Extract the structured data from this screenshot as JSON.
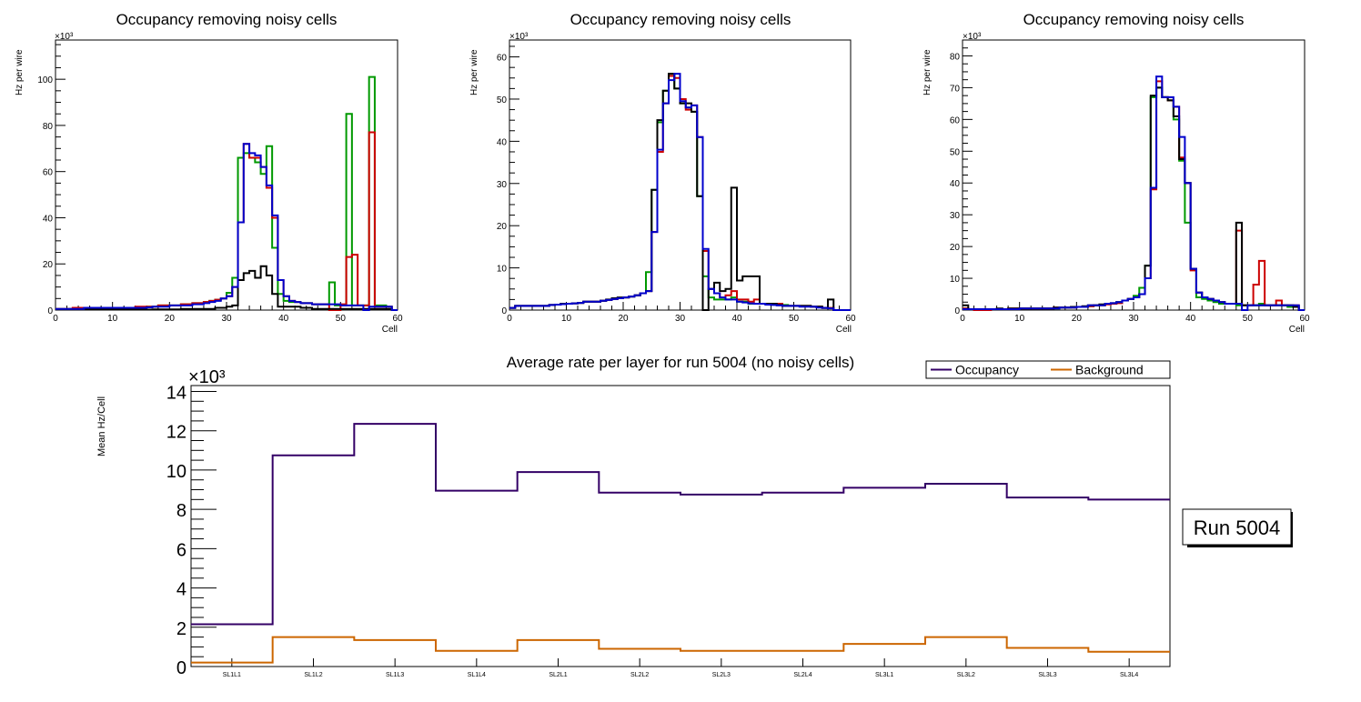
{
  "chart_data": [
    {
      "type": "histogram",
      "title": "Occupancy removing noisy cells",
      "xlabel": "Cell",
      "ylabel": "Hz per wire",
      "y_multiplier": "×10³",
      "xlim": [
        0,
        60
      ],
      "ylim": [
        0,
        117
      ],
      "xticks": [
        0,
        10,
        20,
        30,
        40,
        50,
        60
      ],
      "yticks": [
        0,
        20,
        40,
        60,
        80,
        100
      ],
      "series": [
        {
          "name": "green",
          "color": "#009900",
          "values": [
            0.5,
            0.5,
            0.5,
            0.5,
            0.5,
            0.5,
            1,
            1,
            1,
            1,
            1,
            1,
            1,
            1,
            1.2,
            1.2,
            1.5,
            1.5,
            2,
            2,
            2,
            2,
            2.5,
            2.5,
            3,
            3,
            3.5,
            4,
            4.5,
            5,
            7.5,
            14,
            66,
            68,
            66,
            64,
            59,
            71,
            27,
            7,
            4,
            3.5,
            3.5,
            3,
            3,
            2.5,
            2.5,
            2.5,
            12,
            2,
            2,
            85,
            2,
            2,
            2,
            101,
            2,
            2,
            1.5,
            0
          ]
        },
        {
          "name": "red",
          "color": "#cc0000",
          "values": [
            0.5,
            0.5,
            0.5,
            1,
            1,
            0.5,
            0.5,
            1,
            1,
            1,
            1,
            1,
            1,
            1,
            1.5,
            1.5,
            1.5,
            1.5,
            2,
            2,
            2,
            2,
            2.5,
            2.5,
            3,
            3,
            3.5,
            4,
            4.5,
            5,
            6,
            10,
            38,
            72,
            66,
            66,
            62,
            53,
            40,
            13,
            6,
            4,
            3.5,
            3,
            3,
            2.5,
            2.5,
            2.5,
            0,
            0,
            2.5,
            23,
            24,
            2,
            2,
            77,
            1.5,
            1.5,
            1.5,
            0
          ]
        },
        {
          "name": "black",
          "color": "#000000",
          "values": [
            0.2,
            0.2,
            0.2,
            0.2,
            0.2,
            0.2,
            0.2,
            0.2,
            0.2,
            0.2,
            0.2,
            0.2,
            0.2,
            0.2,
            0.2,
            0.2,
            0.2,
            0.3,
            0.3,
            0.3,
            0.3,
            0.3,
            0.5,
            0.5,
            0.5,
            0.5,
            0.5,
            0.5,
            1,
            1,
            1.5,
            2,
            13,
            16,
            17,
            14,
            19,
            15,
            7,
            1.5,
            1.5,
            1.5,
            1.5,
            1,
            1,
            0.5,
            0.5,
            0.5,
            0.5,
            0.5,
            0.5,
            0.5,
            0.5,
            0.5,
            0.5,
            0.5,
            0.5,
            0.5,
            0.5,
            0
          ]
        },
        {
          "name": "blue",
          "color": "#0000cc",
          "values": [
            0.5,
            0.5,
            0.5,
            0.5,
            0.5,
            1,
            1,
            1,
            1,
            1,
            1,
            1,
            1,
            1,
            1,
            1,
            1.2,
            1.5,
            1.5,
            1.5,
            2,
            2,
            2,
            2,
            2.5,
            2.5,
            3,
            3.5,
            4,
            5,
            6,
            10,
            38,
            72,
            68,
            67,
            62,
            54,
            41,
            13,
            6,
            4,
            3.5,
            3,
            3,
            2.5,
            2.5,
            2.5,
            2.5,
            2.5,
            2,
            2,
            2,
            2,
            0,
            1.5,
            1.5,
            1.5,
            1.5,
            0
          ]
        }
      ]
    },
    {
      "type": "histogram",
      "title": "Occupancy removing noisy cells",
      "xlabel": "Cell",
      "ylabel": "Hz per wire",
      "y_multiplier": "×10³",
      "xlim": [
        0,
        60
      ],
      "ylim": [
        0,
        64
      ],
      "xticks": [
        0,
        10,
        20,
        30,
        40,
        50,
        60
      ],
      "yticks": [
        0,
        10,
        20,
        30,
        40,
        50,
        60
      ],
      "series": [
        {
          "name": "green",
          "color": "#009900",
          "values": [
            0.5,
            1,
            1,
            1,
            1,
            1,
            1,
            1.2,
            1.3,
            1.4,
            1.5,
            1.6,
            1.7,
            2,
            2,
            2,
            2.2,
            2.4,
            2.6,
            2.8,
            3,
            3.2,
            3.5,
            4,
            9,
            28.5,
            44.5,
            52,
            56,
            52.5,
            49,
            48,
            47,
            27,
            8,
            3,
            2.5,
            2.5,
            2.5,
            3,
            2,
            2,
            1.5,
            1.5,
            1.5,
            1.5,
            1.5,
            1.2,
            1.2,
            1,
            1,
            1,
            1,
            0.8,
            0.8,
            0.5,
            0.5,
            0,
            0,
            0
          ]
        },
        {
          "name": "red",
          "color": "#cc0000",
          "values": [
            0.5,
            1,
            1,
            1,
            1,
            1,
            1,
            1.2,
            1.3,
            1.4,
            1.5,
            1.6,
            1.7,
            2,
            2,
            2,
            2.2,
            2.4,
            2.6,
            2.8,
            3,
            3.2,
            3.5,
            4,
            4.5,
            18.5,
            37.5,
            49,
            55.5,
            55,
            50,
            47.5,
            48.5,
            41,
            14,
            5,
            4,
            3,
            3.5,
            4.5,
            2.5,
            2.5,
            2,
            2.5,
            1.5,
            1.5,
            1.5,
            1.5,
            1,
            1,
            1,
            1,
            1,
            0.8,
            0.8,
            0.5,
            0.5,
            0,
            0,
            0
          ]
        },
        {
          "name": "black",
          "color": "#000000",
          "values": [
            0.5,
            1,
            1,
            1,
            1,
            1,
            1,
            1.2,
            1.3,
            1.5,
            1.5,
            1.6,
            1.7,
            2,
            2,
            2,
            2.2,
            2.5,
            2.8,
            3,
            3,
            3.2,
            3.5,
            4,
            4.5,
            28.5,
            45,
            52,
            56,
            52.5,
            49,
            49,
            47,
            27,
            0,
            5,
            6.5,
            4.5,
            5,
            29,
            7,
            8,
            8,
            8,
            1.5,
            1.5,
            1.5,
            1.2,
            1,
            1,
            1,
            1,
            1,
            0.8,
            0.8,
            0.5,
            2.5,
            0,
            0,
            0
          ]
        },
        {
          "name": "blue",
          "color": "#0000cc",
          "values": [
            0.5,
            1,
            1,
            1,
            1,
            1,
            1,
            1.2,
            1.3,
            1.4,
            1.5,
            1.6,
            1.7,
            2,
            2,
            2,
            2.2,
            2.4,
            2.6,
            2.8,
            3,
            3.2,
            3.5,
            4,
            4.5,
            18.5,
            38,
            49,
            54.5,
            56,
            49.5,
            48,
            48.5,
            41,
            14.5,
            5,
            4,
            3,
            2.5,
            2.5,
            2,
            1.8,
            1.6,
            1.5,
            1.5,
            1.3,
            1.2,
            1.1,
            1,
            1,
            1,
            0.8,
            0.8,
            0.8,
            0.6,
            0.5,
            0.4,
            0,
            0,
            0
          ]
        }
      ]
    },
    {
      "type": "histogram",
      "title": "Occupancy removing noisy cells",
      "xlabel": "Cell",
      "ylabel": "Hz per wire",
      "y_multiplier": "×10³",
      "xlim": [
        0,
        60
      ],
      "ylim": [
        0,
        85
      ],
      "xticks": [
        0,
        10,
        20,
        30,
        40,
        50,
        60
      ],
      "yticks": [
        0,
        10,
        20,
        30,
        40,
        50,
        60,
        70,
        80
      ],
      "series": [
        {
          "name": "green",
          "color": "#009900",
          "values": [
            0.5,
            0.3,
            0.3,
            0.3,
            0.3,
            0.3,
            0.3,
            0.3,
            0.3,
            0.3,
            0.5,
            0.5,
            0.5,
            0.5,
            0.5,
            0.5,
            0.5,
            0.8,
            0.8,
            0.8,
            1,
            1,
            1.2,
            1.5,
            1.5,
            2,
            2,
            2.5,
            3,
            3.5,
            4.5,
            7,
            14,
            67,
            70,
            67,
            66,
            60,
            47,
            27.5,
            13,
            4,
            3.5,
            3,
            2.5,
            2,
            2,
            2,
            1.5,
            1.5,
            1.5,
            1.5,
            2,
            1.5,
            1.5,
            1.5,
            1.5,
            1,
            1,
            0
          ]
        },
        {
          "name": "red",
          "color": "#cc0000",
          "values": [
            0.5,
            0.3,
            0,
            0,
            0,
            0.3,
            0.3,
            0.3,
            0.5,
            0.5,
            0.5,
            0.5,
            0.5,
            0.5,
            0.5,
            0.5,
            0.8,
            0.8,
            0.8,
            0.8,
            1,
            1,
            1.2,
            1.5,
            1.5,
            1.8,
            2,
            2.2,
            3,
            3.5,
            4,
            5,
            10,
            38,
            72,
            67,
            66,
            64,
            48,
            40,
            12.5,
            5.5,
            4,
            3.5,
            3,
            2.5,
            2,
            2,
            25,
            1.5,
            1.5,
            8,
            15.5,
            1.5,
            1.5,
            3,
            1.5,
            1.5,
            1.5,
            0
          ]
        },
        {
          "name": "black",
          "color": "#000000",
          "values": [
            1.5,
            0.3,
            0.3,
            0.3,
            0.3,
            0.3,
            0.5,
            0.3,
            0.5,
            0.5,
            0.5,
            0.5,
            0.5,
            0.5,
            0.5,
            0.5,
            0.8,
            0.8,
            0.8,
            1,
            1,
            1.2,
            1.5,
            1.5,
            1.8,
            2,
            2.2,
            2.5,
            3,
            3.5,
            4,
            5,
            14,
            67.5,
            70,
            67,
            66,
            61,
            47.5,
            40,
            13,
            5.5,
            4,
            3.5,
            3,
            2.5,
            2,
            2,
            27.5,
            1.5,
            1.5,
            1.5,
            1.5,
            1.5,
            1.5,
            1.5,
            1.5,
            1.5,
            1,
            0
          ]
        },
        {
          "name": "blue",
          "color": "#0000cc",
          "values": [
            0.3,
            0.3,
            0.3,
            0.3,
            0.3,
            0.3,
            0.3,
            0.3,
            0.3,
            0.3,
            0.5,
            0.5,
            0.5,
            0.5,
            0.5,
            0.5,
            0.5,
            0.8,
            0.8,
            0.8,
            1,
            1,
            1.5,
            1.5,
            1.5,
            2,
            2.2,
            2.5,
            3,
            3.5,
            4,
            5,
            10,
            38.5,
            73.5,
            67,
            67,
            64,
            54.5,
            40,
            13,
            5.5,
            4,
            3.5,
            3,
            2.5,
            2,
            2,
            2,
            0,
            1.5,
            1.5,
            1.5,
            1.5,
            1.5,
            1.5,
            1.5,
            1.5,
            1.5,
            0
          ]
        }
      ]
    },
    {
      "type": "histogram",
      "title": "Average rate per layer for run 5004 (no noisy cells)",
      "xlabel": "",
      "ylabel": "Mean Hz/Cell",
      "y_multiplier": "×10³",
      "categories": [
        "SL1L1",
        "SL1L2",
        "SL1L3",
        "SL1L4",
        "SL2L1",
        "SL2L2",
        "SL2L3",
        "SL2L4",
        "SL3L1",
        "SL3L2",
        "SL3L3",
        "SL3L4"
      ],
      "ylim": [
        0,
        14.3
      ],
      "yticks": [
        0,
        2,
        4,
        6,
        8,
        10,
        12,
        14
      ],
      "legend_position": "top-right",
      "series": [
        {
          "name": "Occupancy",
          "color": "#330066",
          "values": [
            2.15,
            10.75,
            12.35,
            8.95,
            9.9,
            8.85,
            8.75,
            8.85,
            9.1,
            9.3,
            8.6,
            8.5
          ]
        },
        {
          "name": "Background",
          "color": "#cc6600",
          "values": [
            0.2,
            1.5,
            1.35,
            0.8,
            1.35,
            0.9,
            0.8,
            0.8,
            1.15,
            1.5,
            0.95,
            0.75
          ]
        }
      ],
      "annotation": "Run 5004"
    }
  ]
}
